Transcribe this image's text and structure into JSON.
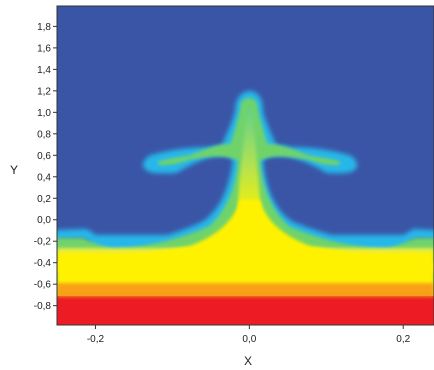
{
  "chart_data": {
    "type": "heatmap",
    "title": "",
    "xlabel": "X",
    "ylabel": "Y",
    "xlim": [
      -0.25,
      0.24
    ],
    "ylim": [
      -0.98,
      1.99
    ],
    "x_ticks": [
      {
        "value": -0.2,
        "label": "-0,2"
      },
      {
        "value": 0.0,
        "label": "0,0"
      },
      {
        "value": 0.2,
        "label": "0,2"
      }
    ],
    "y_ticks": [
      {
        "value": -0.8,
        "label": "-0,8"
      },
      {
        "value": -0.6,
        "label": "-0,6"
      },
      {
        "value": -0.4,
        "label": "-0,4"
      },
      {
        "value": -0.2,
        "label": "-0,2"
      },
      {
        "value": 0.0,
        "label": "0,0"
      },
      {
        "value": 0.2,
        "label": "0,2"
      },
      {
        "value": 0.4,
        "label": "0,4"
      },
      {
        "value": 0.6,
        "label": "0,6"
      },
      {
        "value": 0.8,
        "label": "0,8"
      },
      {
        "value": 1.0,
        "label": "1,0"
      },
      {
        "value": 1.2,
        "label": "1,2"
      },
      {
        "value": 1.4,
        "label": "1,4"
      },
      {
        "value": 1.6,
        "label": "1,6"
      },
      {
        "value": 1.8,
        "label": "1,8"
      }
    ],
    "colormap": [
      "#3a55a6",
      "#2ab4e6",
      "#6fd36a",
      "#fff200",
      "#f7941d",
      "#ed1c24"
    ],
    "field": {
      "background": "#3a55a6",
      "regions": [
        {
          "name": "red-layer",
          "color": "#ed1c24",
          "y_range": [
            -0.98,
            -0.66
          ]
        },
        {
          "name": "orange-band",
          "color": "#f7941d",
          "y_range": [
            -0.72,
            -0.6
          ]
        },
        {
          "name": "yellow-layer",
          "color": "#fff200",
          "y_range": [
            -0.66,
            -0.3
          ]
        }
      ],
      "features": [
        {
          "name": "central-plume",
          "x": 0.0,
          "y_range": [
            -0.3,
            1.15
          ]
        },
        {
          "name": "left-arm-curl",
          "x": -0.13,
          "y": 0.52
        },
        {
          "name": "right-arm-curl",
          "x": 0.13,
          "y": 0.52
        },
        {
          "name": "left-edge-curl",
          "x": -0.22,
          "y": -0.22
        },
        {
          "name": "right-edge-curl",
          "x": 0.22,
          "y": -0.22
        }
      ]
    }
  }
}
